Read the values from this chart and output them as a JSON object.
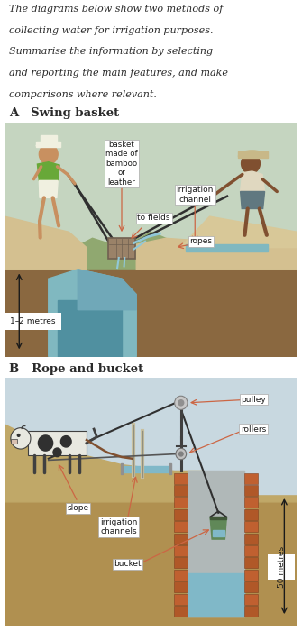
{
  "white": "#ffffff",
  "text_color": "#2a2a2a",
  "intro_line1": "The diagrams below show two methods of",
  "intro_line2": "collecting water for irrigation purposes.",
  "task_line1": "Summarise the information by selecting",
  "task_line2": "and reporting the main features, and make",
  "task_line3": "comparisons where relevant.",
  "section_A": "A   Swing basket",
  "section_B": "B   Rope and bucket",
  "label_basket": "basket\nmade of\nbamboo\nor\nleather",
  "label_irr_channel": "irrigation\nchannel",
  "label_to_fields": "to fields",
  "label_ropes": "ropes",
  "label_1_2m": "1–2 metres",
  "label_pulley": "pulley",
  "label_rollers": "rollers",
  "label_slope": "slope",
  "label_irr_channels": "irrigation\nchannels",
  "label_bucket": "bucket",
  "label_50m": "50 metres",
  "sky_A": "#c5d5c0",
  "ground_A_light": "#d4c090",
  "ground_A_dark": "#8a6840",
  "water_A": "#80b8c0",
  "water_deep": "#5090a0",
  "hills_A": "#90a870",
  "sky_B": "#c8d8e0",
  "ground_B": "#c0a868",
  "ground_B_dark": "#b09050",
  "brick": "#b05828",
  "brick_dark": "#804020",
  "bucket_green": "#608858",
  "water_B": "#80b8c8",
  "rope_color": "#303030",
  "arrow_color": "#cc6644",
  "person_skin_L": "#c89060",
  "person_skin_R": "#805030",
  "shirt_green": "#68a838",
  "shorts_white": "#f0f0e0",
  "shorts_grey": "#607880",
  "hat_white": "#f0f0e0",
  "hat_tan": "#c8b888",
  "cow_white": "#e8e8e0",
  "sand_B": "#c0b080"
}
